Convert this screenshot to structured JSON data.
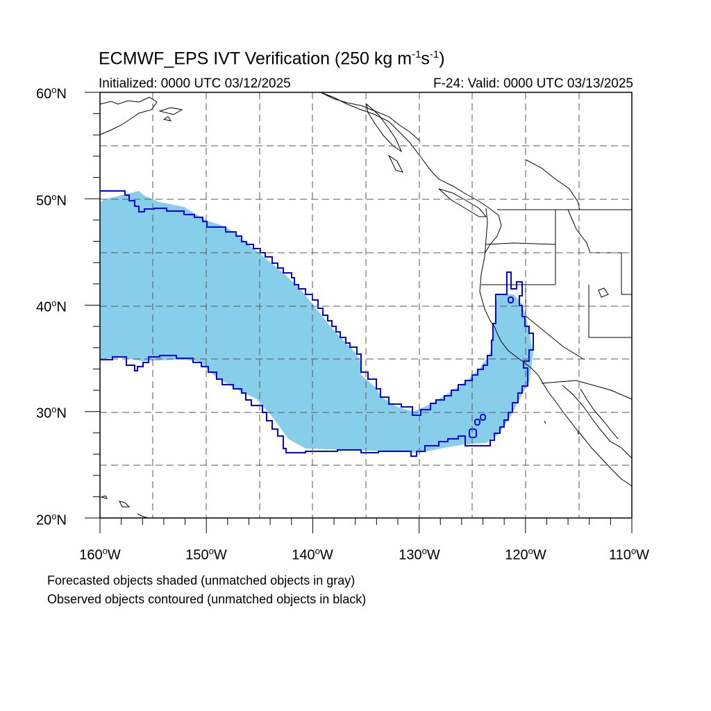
{
  "title": {
    "prefix": "ECMWF_EPS IVT Verification (250 kg m",
    "exp1": "-1",
    "mid": "s",
    "exp2": "-1",
    "suffix": ")"
  },
  "subtitle_left": "Initialized: 0000 UTC 03/12/2025",
  "subtitle_right": "F-24: Valid: 0000 UTC 03/13/2025",
  "degree_symbol": "o",
  "lat_labels": [
    {
      "value": "60",
      "hemi": "N"
    },
    {
      "value": "50",
      "hemi": "N"
    },
    {
      "value": "40",
      "hemi": "N"
    },
    {
      "value": "30",
      "hemi": "N"
    },
    {
      "value": "20",
      "hemi": "N"
    }
  ],
  "lon_labels": [
    {
      "value": "160",
      "hemi": "W"
    },
    {
      "value": "150",
      "hemi": "W"
    },
    {
      "value": "140",
      "hemi": "W"
    },
    {
      "value": "130",
      "hemi": "W"
    },
    {
      "value": "120",
      "hemi": "W"
    },
    {
      "value": "110",
      "hemi": "W"
    }
  ],
  "notes": [
    "Forecasted objects shaded (unmatched objects in gray)",
    "Observed objects contoured (unmatched objects in black)"
  ],
  "colors": {
    "forecast_fill": "#87ceeb",
    "observed_contour": "#0000ff",
    "coastline": "#000000",
    "grid": "#555555"
  },
  "map_extent": {
    "lon_min": -160,
    "lon_max": -110,
    "lat_min": 20,
    "lat_max": 60
  }
}
